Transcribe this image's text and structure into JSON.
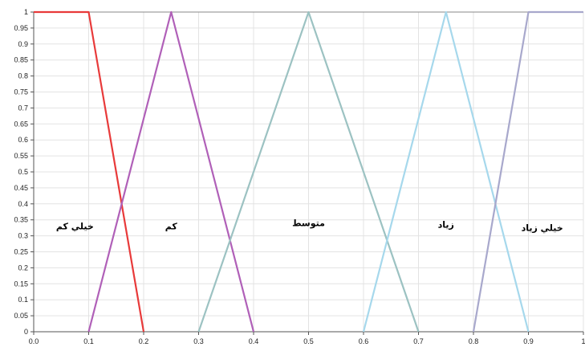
{
  "chart_data": {
    "type": "line",
    "title": "",
    "xlabel": "",
    "ylabel": "",
    "xlim": [
      0,
      1
    ],
    "ylim": [
      0,
      1
    ],
    "grid": true,
    "legend": "none",
    "x_ticks": [
      "0.0",
      "0.1",
      "0.2",
      "0.3",
      "0.4",
      "0.5",
      "0.6",
      "0.7",
      "0.8",
      "0.9",
      "1"
    ],
    "y_ticks": [
      "0",
      "0.05",
      "0.1",
      "0.15",
      "0.2",
      "0.25",
      "0.3",
      "0.35",
      "0.4",
      "0.45",
      "0.5",
      "0.55",
      "0.6",
      "0.65",
      "0.7",
      "0.75",
      "0.8",
      "0.85",
      "0.9",
      "0.95",
      "1"
    ],
    "series": [
      {
        "name": "خيلي كم",
        "color": "#e83a3a",
        "points": [
          [
            0,
            1
          ],
          [
            0.1,
            1
          ],
          [
            0.2,
            0
          ]
        ]
      },
      {
        "name": "كم",
        "color": "#b060b8",
        "points": [
          [
            0.1,
            0
          ],
          [
            0.25,
            1
          ],
          [
            0.4,
            0
          ]
        ]
      },
      {
        "name": "متوسط",
        "color": "#9cc2c2",
        "points": [
          [
            0.3,
            0
          ],
          [
            0.5,
            1
          ],
          [
            0.7,
            0
          ]
        ]
      },
      {
        "name": "زياد",
        "color": "#a6d8ec",
        "points": [
          [
            0.6,
            0
          ],
          [
            0.75,
            1
          ],
          [
            0.9,
            0
          ]
        ]
      },
      {
        "name": "خيلي زياد",
        "color": "#a8a8cc",
        "points": [
          [
            0.8,
            0
          ],
          [
            0.9,
            1
          ],
          [
            1,
            1
          ]
        ]
      }
    ],
    "annotations": [
      {
        "text": "خيلي كم",
        "x": 0.075,
        "y": 0.33
      },
      {
        "text": "كم",
        "x": 0.25,
        "y": 0.33
      },
      {
        "text": "متوسط",
        "x": 0.5,
        "y": 0.34
      },
      {
        "text": "زياد",
        "x": 0.75,
        "y": 0.335
      },
      {
        "text": "خيلي زياد",
        "x": 0.925,
        "y": 0.325
      }
    ]
  }
}
